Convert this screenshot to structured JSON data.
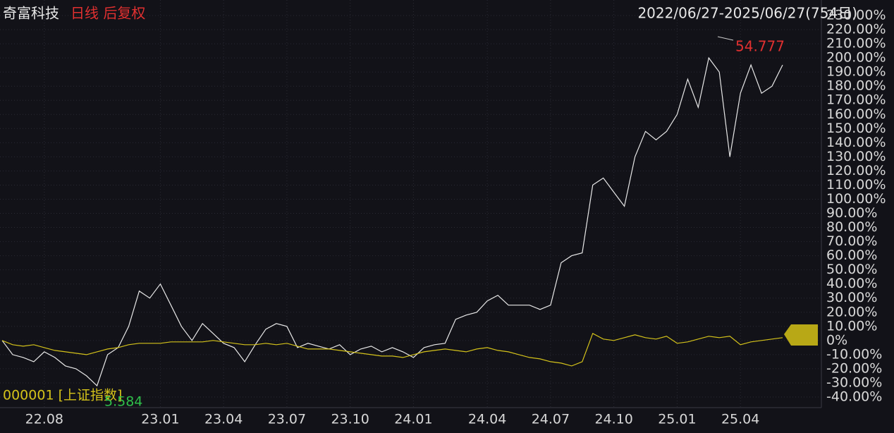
{
  "chart_data": {
    "type": "line",
    "title": "奇富科技",
    "subtitle": "日线 后复权",
    "range_label": "2022/06/27-2025/06/27(754日)",
    "annotations": [
      "54.777",
      "5.584"
    ],
    "categories": [
      null,
      null,
      null,
      null,
      "22.08",
      null,
      null,
      null,
      null,
      null,
      null,
      null,
      null,
      null,
      null,
      "23.01",
      null,
      null,
      null,
      null,
      null,
      "23.04",
      null,
      null,
      null,
      null,
      null,
      "23.07",
      null,
      null,
      null,
      null,
      null,
      "23.10",
      null,
      null,
      null,
      null,
      null,
      "24.01",
      null,
      null,
      null,
      null,
      null,
      null,
      "24.04",
      null,
      null,
      null,
      null,
      null,
      "24.07",
      null,
      null,
      null,
      null,
      null,
      "24.10",
      null,
      null,
      null,
      null,
      null,
      "25.01",
      null,
      null,
      null,
      null,
      null,
      "25.04",
      null,
      null,
      null,
      null
    ],
    "series": [
      {
        "name": "奇富科技",
        "color": "#e8e8e8",
        "values": [
          0,
          -10,
          -12,
          -15,
          -8,
          -12,
          -18,
          -20,
          -25,
          -32,
          -10,
          -5,
          10,
          35,
          30,
          40,
          25,
          10,
          0,
          12,
          5,
          -2,
          -5,
          -15,
          -3,
          8,
          12,
          10,
          -5,
          -2,
          -4,
          -6,
          -3,
          -10,
          -6,
          -4,
          -8,
          -5,
          -8,
          -12,
          -5,
          -3,
          -2,
          15,
          18,
          20,
          28,
          32,
          25,
          25,
          25,
          22,
          25,
          55,
          60,
          62,
          110,
          115,
          105,
          95,
          130,
          148,
          142,
          148,
          160,
          185,
          165,
          200,
          190,
          130,
          175,
          195,
          175,
          180,
          195
        ]
      },
      {
        "name": "000001 [上证指数]",
        "color": "#d4c21a",
        "values": [
          0,
          -3,
          -4,
          -3,
          -5,
          -7,
          -8,
          -9,
          -10,
          -8,
          -6,
          -5,
          -3,
          -2,
          -2,
          -2,
          -1,
          -1,
          -1,
          -1,
          0,
          -1,
          -2,
          -3,
          -3,
          -2,
          -3,
          -2,
          -4,
          -6,
          -6,
          -6,
          -7,
          -8,
          -9,
          -10,
          -11,
          -11,
          -12,
          -10,
          -8,
          -7,
          -6,
          -7,
          -8,
          -6,
          -5,
          -7,
          -8,
          -10,
          -12,
          -13,
          -15,
          -16,
          -18,
          -15,
          5,
          1,
          0,
          2,
          4,
          2,
          1,
          3,
          -2,
          -1,
          1,
          3,
          2,
          3,
          -3,
          -1,
          0,
          1,
          2
        ]
      }
    ],
    "ylim": [
      -46,
      235
    ],
    "yticks": [
      {
        "value": 230,
        "label": "230.00%"
      },
      {
        "value": 220,
        "label": "220.00%"
      },
      {
        "value": 210,
        "label": "210.00%"
      },
      {
        "value": 200,
        "label": "200.00%"
      },
      {
        "value": 190,
        "label": "190.00%"
      },
      {
        "value": 180,
        "label": "180.00%"
      },
      {
        "value": 170,
        "label": "170.00%"
      },
      {
        "value": 160,
        "label": "160.00%"
      },
      {
        "value": 150,
        "label": "150.00%"
      },
      {
        "value": 140,
        "label": "140.00%"
      },
      {
        "value": 130,
        "label": "130.00%"
      },
      {
        "value": 120,
        "label": "120.00%"
      },
      {
        "value": 110,
        "label": "110.00%"
      },
      {
        "value": 100,
        "label": "100.00%"
      },
      {
        "value": 90,
        "label": "90.00%"
      },
      {
        "value": 80,
        "label": "80.00%"
      },
      {
        "value": 70,
        "label": "70.00%"
      },
      {
        "value": 60,
        "label": "60.00%"
      },
      {
        "value": 50,
        "label": "50.00%"
      },
      {
        "value": 40,
        "label": "40.00%"
      },
      {
        "value": 30,
        "label": "30.00%"
      },
      {
        "value": 20,
        "label": "20.00%"
      },
      {
        "value": 10,
        "label": "10.00%"
      },
      {
        "value": 0,
        "label": "0%"
      },
      {
        "value": -10,
        "label": "-10.00%"
      },
      {
        "value": -20,
        "label": "-20.00%"
      },
      {
        "value": -30,
        "label": "-30.00%"
      },
      {
        "value": -40,
        "label": "-40.00%"
      }
    ],
    "grid": true
  }
}
